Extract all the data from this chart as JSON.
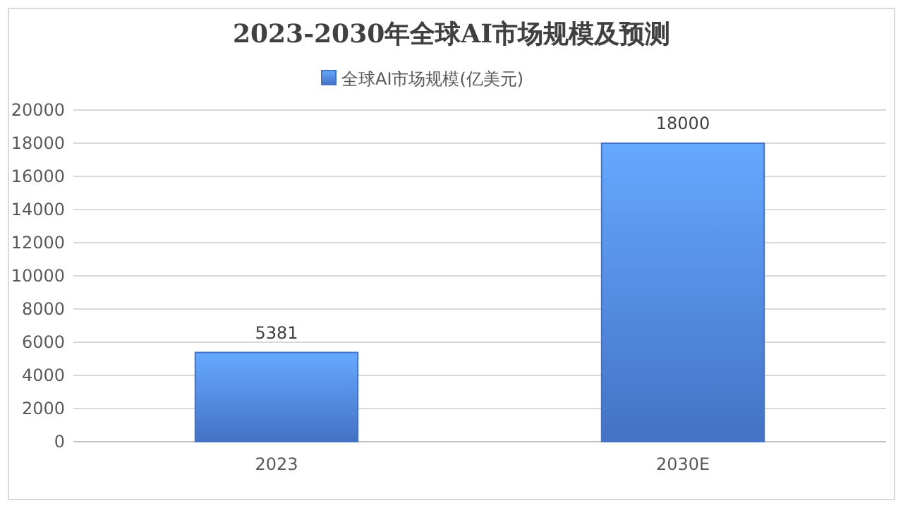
{
  "chart_data": {
    "type": "bar",
    "title": "2023-2030年全球AI市场规模及预测",
    "categories": [
      "2023",
      "2030E"
    ],
    "series": [
      {
        "name": "全球AI市场规模(亿美元)",
        "color": "#4472c4",
        "values": [
          5381,
          18000
        ]
      }
    ],
    "ylim": [
      0,
      20000
    ],
    "yticks": [
      0,
      2000,
      4000,
      6000,
      8000,
      10000,
      12000,
      14000,
      16000,
      18000,
      20000
    ],
    "grid": "y",
    "legend": "top",
    "data_labels": true
  }
}
